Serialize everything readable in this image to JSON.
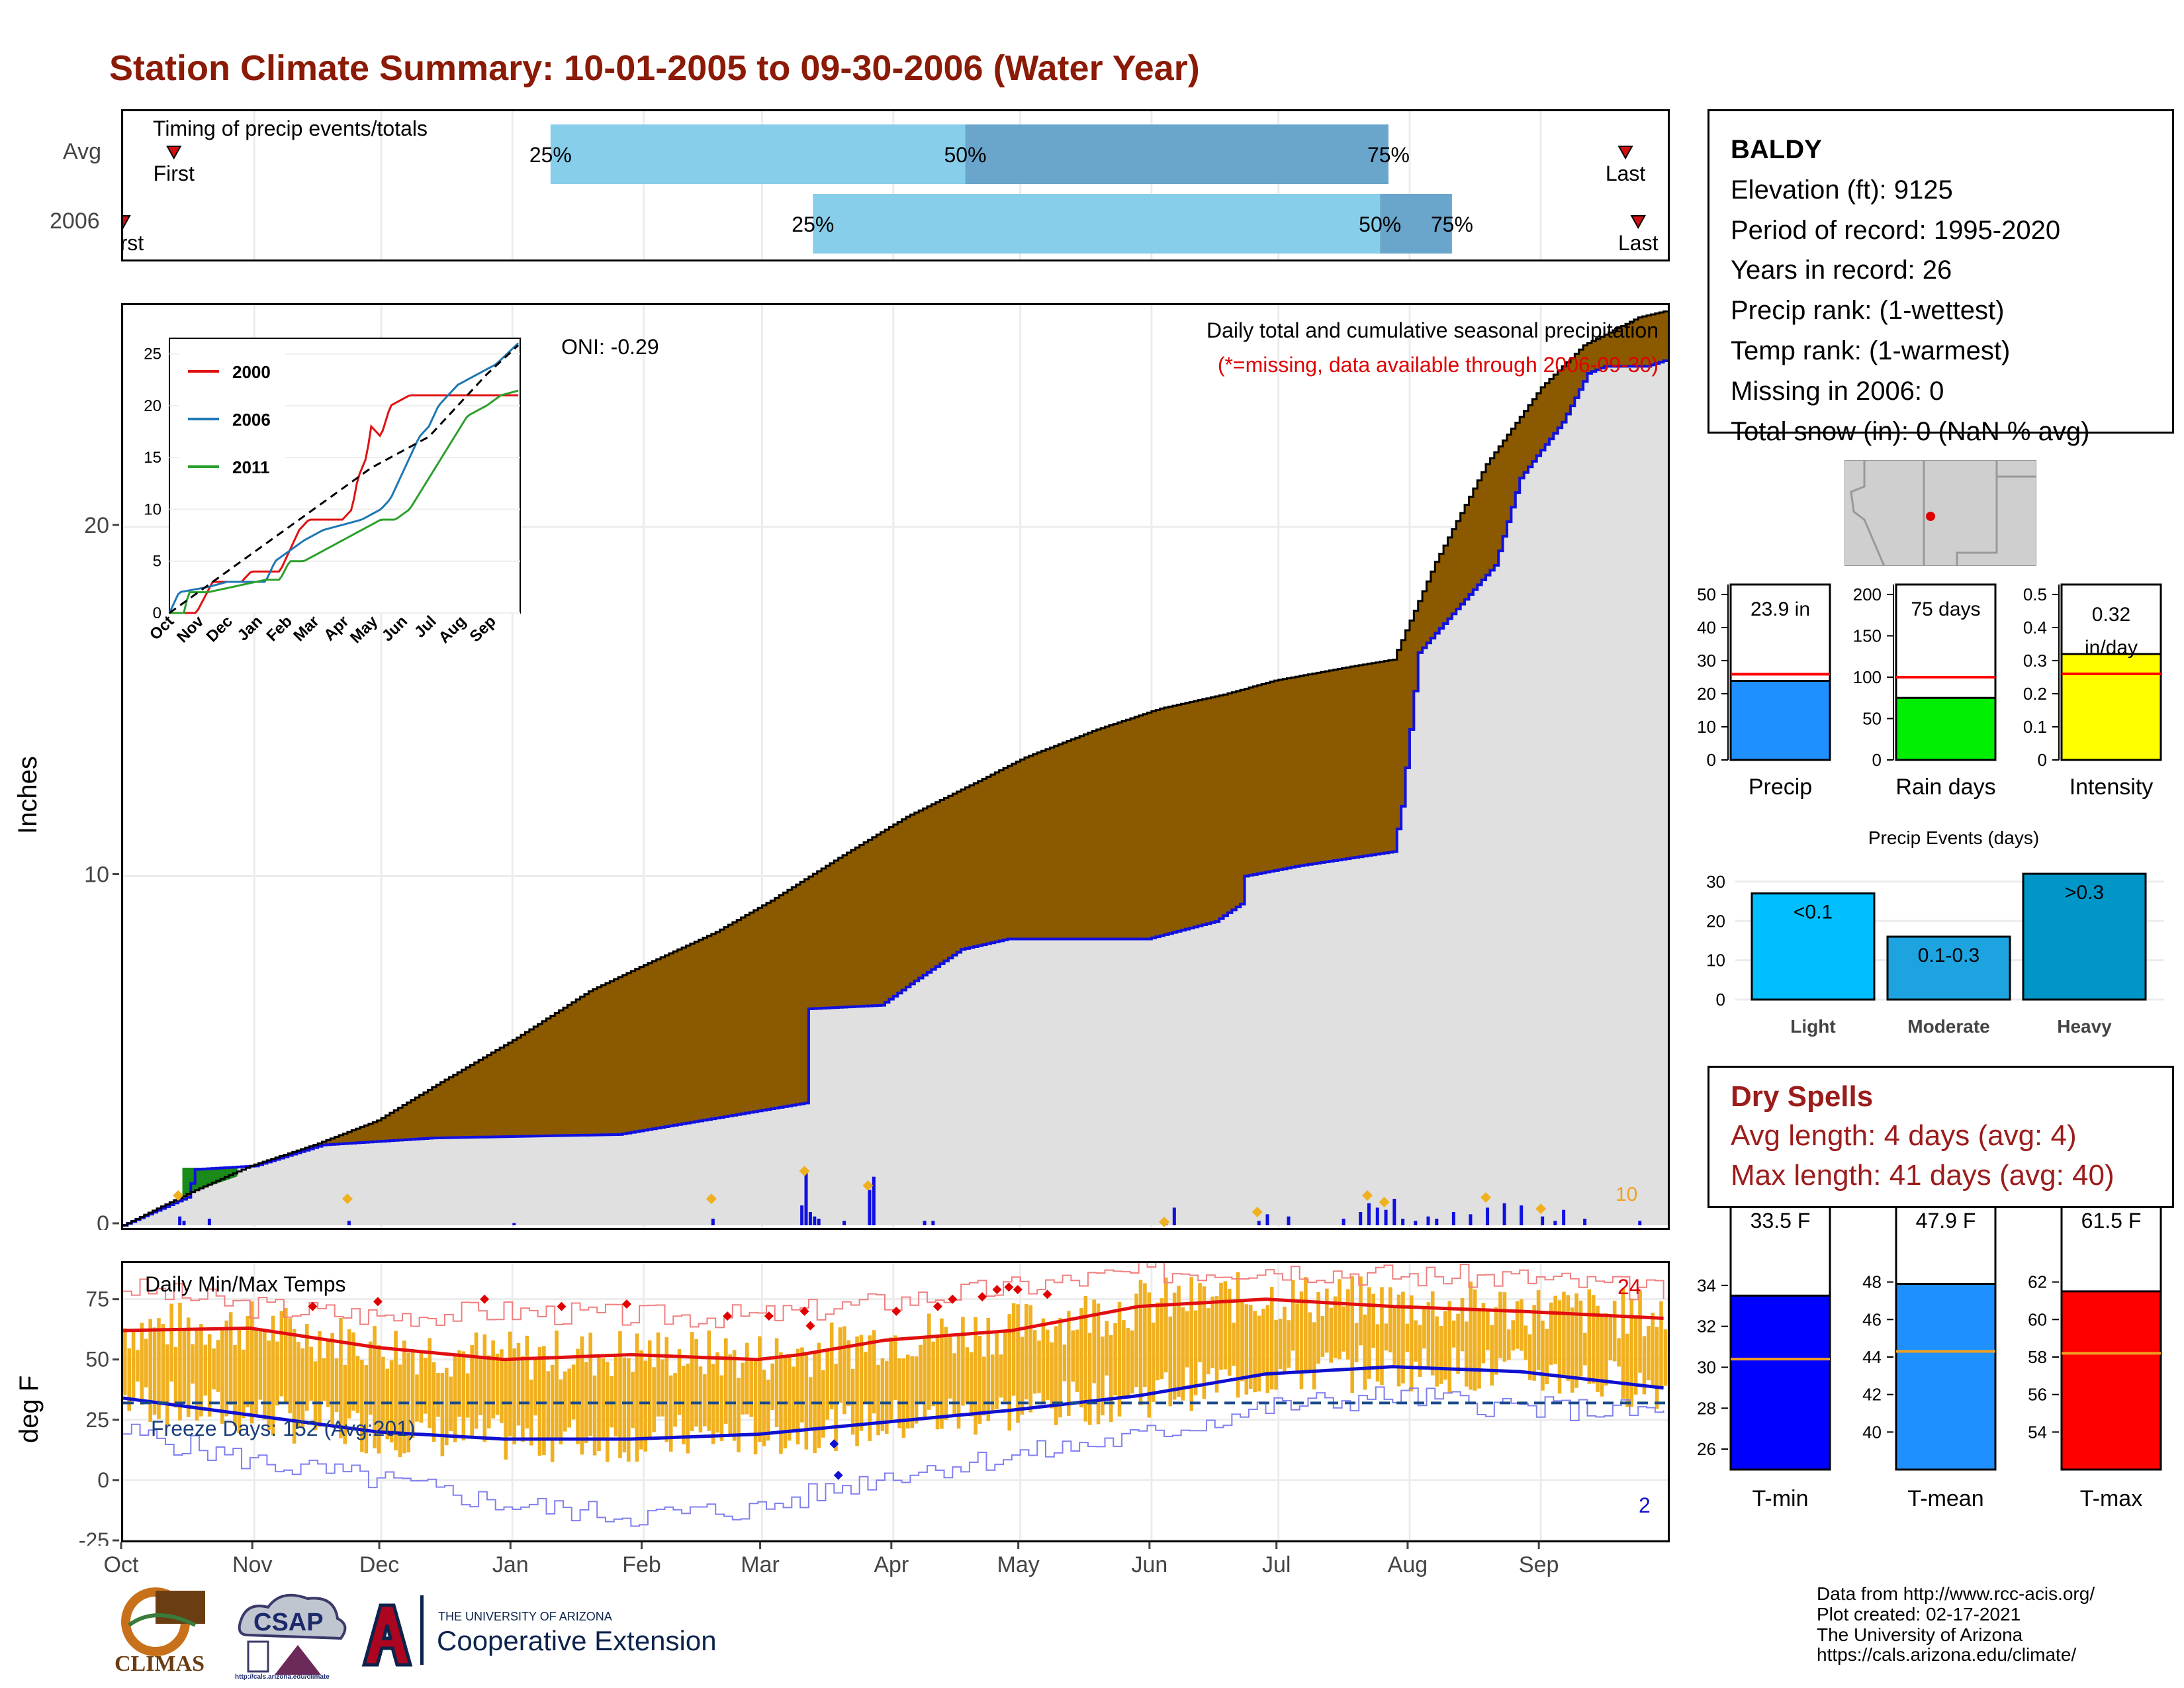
{
  "title": "Station Climate Summary: 10-01-2005 to 09-30-2006 (Water Year)",
  "colors": {
    "title": "#8b1a06",
    "cum_fill": "#8b5a00",
    "cum_under": "#e0e0e0",
    "blue": "#1010e0",
    "orange": "#f0b020",
    "light_bar": "#87ceeb",
    "dark_bar": "#6aa5cc",
    "dry_text": "#9c1c1c"
  },
  "timing": {
    "label": "Timing of precip events/totals",
    "rows": [
      {
        "name": "Avg",
        "first_label": "First",
        "last_label": "Last",
        "q25": "25%",
        "q50": "50%",
        "q75": "75%",
        "first_day": 12,
        "last_day": 355,
        "p25_day": 101,
        "p50_day": 199,
        "p75_day": 299
      },
      {
        "name": "2006",
        "first_label": "First",
        "last_label": "Last",
        "q25": "25%",
        "q50": "50%",
        "q75": "75%",
        "first_day": 0,
        "last_day": 358,
        "p25_day": 163,
        "p50_day": 297,
        "p75_day": 314
      }
    ]
  },
  "main_chart": {
    "ylabel": "Inches",
    "heading": "Daily total and cumulative seasonal precipitation",
    "missing_note": "(*=missing, data available through 2006-09-30)",
    "oni": "ONI: -0.29",
    "daily_max_label": "10"
  },
  "temp_chart": {
    "label": "Daily Min/Max Temps",
    "ylabel": "deg F",
    "freeze": "Freeze Days: 152 (Avg:201)",
    "count_high": "24",
    "count_low": "2"
  },
  "months": [
    "Oct",
    "Nov",
    "Dec",
    "Jan",
    "Feb",
    "Mar",
    "Apr",
    "May",
    "Jun",
    "Jul",
    "Aug",
    "Sep"
  ],
  "inset_months": [
    "Oct",
    "Nov",
    "Dec",
    "Jan",
    "Feb",
    "Mar",
    "Apr",
    "May",
    "Jun",
    "Jul",
    "Aug",
    "Sep"
  ],
  "station": {
    "name": "BALDY",
    "elevation": "Elevation (ft): 9125",
    "period": "Period of record: 1995-2020",
    "years": "Years in record: 26",
    "precip_rank": "Precip rank:  (1-wettest)",
    "temp_rank": "Temp rank:  (1-warmest)",
    "missing": "Missing in 2006: 0",
    "snow": "Total snow (in): 0 (NaN % avg)"
  },
  "precip_events_title": "Precip Events (days)",
  "dry_spells": {
    "heading": "Dry Spells",
    "avg": "Avg length: 4 days (avg: 4)",
    "max": "Max length: 41 days (avg: 40)"
  },
  "credits": [
    "Data from http://www.rcc-acis.org/",
    "Plot created: 02-17-2021",
    "The University of Arizona",
    "https://cals.arizona.edu/climate/"
  ],
  "logos": {
    "climas": "CLIMAS",
    "csap": "CSAP",
    "csap_url": "http://cals.arizona.edu/climate",
    "ua_small": "THE UNIVERSITY OF ARIZONA",
    "ua_big": "Cooperative Extension"
  },
  "chart_data": [
    {
      "type": "area",
      "title": "Daily total and cumulative seasonal precipitation",
      "ylabel": "Inches",
      "ylim": [
        0,
        26.2
      ],
      "x_unit": "day of water year (0 = Oct 1)",
      "cumulative_2006": {
        "x": [
          0,
          15,
          30,
          45,
          60,
          75,
          92,
          110,
          122,
          140,
          153,
          170,
          185,
          200,
          213,
          230,
          245,
          260,
          272,
          290,
          300,
          310,
          322,
          335,
          345,
          358,
          365
        ],
        "y": [
          0,
          0.9,
          1.7,
          2.3,
          3.0,
          4.1,
          5.3,
          6.7,
          7.4,
          8.4,
          9.3,
          10.6,
          11.7,
          12.6,
          13.4,
          14.2,
          14.8,
          15.2,
          15.6,
          16.0,
          16.2,
          19.0,
          21.8,
          24.0,
          25.2,
          26.0,
          26.2
        ]
      },
      "cumulative_avg": {
        "x": [
          0,
          15,
          17,
          31,
          47,
          73,
          117,
          161,
          162,
          179,
          187,
          198,
          209,
          242,
          258,
          264,
          265,
          278,
          300,
          302,
          306,
          324,
          330,
          340,
          346,
          350,
          360,
          365
        ],
        "y": [
          0,
          0.8,
          1.6,
          1.7,
          2.3,
          2.5,
          2.6,
          3.5,
          6.2,
          6.3,
          7.0,
          7.9,
          8.2,
          8.2,
          8.7,
          9.2,
          10.0,
          10.3,
          10.7,
          12.0,
          16.4,
          18.9,
          21.4,
          23.0,
          24.4,
          24.6,
          24.6,
          24.8
        ]
      },
      "daily_precip": {
        "x": [
          13,
          14,
          20,
          53,
          92,
          139,
          160,
          161,
          162,
          163,
          164,
          170,
          176,
          177,
          189,
          191,
          246,
          248,
          268,
          270,
          275,
          288,
          292,
          294,
          296,
          298,
          300,
          302,
          305,
          308,
          310,
          314,
          318,
          322,
          326,
          330,
          335,
          338,
          340,
          345,
          358
        ],
        "y": [
          0.2,
          0.1,
          0.15,
          0.1,
          0.05,
          0.15,
          0.45,
          1.2,
          0.3,
          0.2,
          0.15,
          0.1,
          0.8,
          1.1,
          0.1,
          0.1,
          0.05,
          0.4,
          0.1,
          0.25,
          0.2,
          0.15,
          0.3,
          0.5,
          0.4,
          0.35,
          0.6,
          0.15,
          0.1,
          0.2,
          0.15,
          0.3,
          0.25,
          0.4,
          0.5,
          0.45,
          0.2,
          0.1,
          0.35,
          0.15,
          0.1
        ]
      },
      "oni": -0.29
    },
    {
      "type": "line",
      "title": "",
      "series": [
        {
          "name": "2000",
          "x": [
            0,
            26,
            28,
            45,
            55,
            75,
            85,
            115,
            125,
            135,
            145,
            160,
            180,
            190,
            196,
            205,
            210,
            220,
            230,
            250,
            270,
            280,
            300,
            320,
            340,
            365
          ],
          "y": [
            0,
            0,
            0,
            3,
            3,
            3,
            4,
            4,
            6,
            8,
            9,
            9,
            9,
            10,
            13,
            15,
            18,
            17,
            20,
            21,
            21,
            21,
            21,
            21,
            21,
            21
          ]
        },
        {
          "name": "2006",
          "x": [
            0,
            10,
            40,
            60,
            80,
            100,
            110,
            125,
            140,
            160,
            180,
            200,
            210,
            220,
            230,
            240,
            250,
            260,
            270,
            280,
            300,
            320,
            340,
            365
          ],
          "y": [
            0,
            2,
            2.5,
            3,
            3,
            3,
            5,
            6,
            7,
            8,
            8.5,
            9,
            9.5,
            10,
            11,
            13,
            15,
            17,
            18,
            20,
            22,
            23,
            24,
            26.2
          ]
        },
        {
          "name": "2011",
          "x": [
            0,
            15,
            20,
            40,
            60,
            80,
            100,
            115,
            125,
            140,
            160,
            180,
            200,
            210,
            220,
            235,
            250,
            270,
            290,
            310,
            330,
            345,
            365
          ],
          "y": [
            0,
            0,
            2,
            2,
            2.4,
            2.8,
            3.2,
            3.2,
            5,
            5,
            6,
            7,
            8,
            8.5,
            9,
            9,
            10,
            13,
            16,
            19,
            20,
            21,
            21.5
          ]
        },
        {
          "name": "Avg",
          "x": [
            0,
            30,
            60,
            90,
            120,
            150,
            180,
            210,
            240,
            270,
            300,
            330,
            365
          ],
          "y": [
            0,
            2,
            4,
            6,
            8,
            10,
            12,
            14,
            15.5,
            17,
            20,
            23,
            26
          ]
        }
      ],
      "ylim": [
        0,
        26
      ],
      "xticklabels": [
        "Oct",
        "Nov",
        "Dec",
        "Jan",
        "Feb",
        "Mar",
        "Apr",
        "May",
        "Jun",
        "Jul",
        "Aug",
        "Sep"
      ]
    },
    {
      "type": "line",
      "title": "Daily Min/Max Temps",
      "ylabel": "deg F",
      "ylim": [
        -25,
        90
      ],
      "avg_max": {
        "x": [
          0,
          30,
          60,
          90,
          120,
          150,
          160,
          180,
          210,
          240,
          270,
          300,
          330,
          365
        ],
        "y": [
          62,
          63,
          55,
          50,
          52,
          50,
          52,
          58,
          62,
          72,
          75,
          72,
          70,
          67
        ]
      },
      "avg_min": {
        "x": [
          0,
          30,
          60,
          90,
          120,
          150,
          180,
          210,
          240,
          270,
          300,
          330,
          365
        ],
        "y": [
          34,
          27,
          20,
          17,
          17,
          19,
          24,
          29,
          35,
          44,
          47,
          45,
          38
        ]
      },
      "record_max": {
        "x": [
          0,
          30,
          60,
          90,
          120,
          150,
          180,
          210,
          240,
          270,
          300,
          330,
          365
        ],
        "y": [
          80,
          72,
          68,
          70,
          68,
          68,
          74,
          80,
          86,
          88,
          85,
          84,
          78
        ]
      },
      "record_min": {
        "x": [
          0,
          30,
          60,
          90,
          120,
          150,
          180,
          210,
          240,
          270,
          300,
          330,
          365
        ],
        "y": [
          20,
          8,
          0,
          -10,
          -15,
          -12,
          2,
          10,
          18,
          30,
          35,
          30,
          28
        ]
      },
      "freeze_line": 32,
      "freeze_days": 152,
      "freeze_days_avg": 201,
      "record_high_count": 24,
      "record_low_count": 2
    },
    {
      "type": "bar",
      "title": "",
      "categories": [
        "Precip"
      ],
      "values": [
        23.9
      ],
      "avg": 25.9,
      "ylim": [
        0,
        50
      ],
      "label": "23.9 in"
    },
    {
      "type": "bar",
      "title": "",
      "categories": [
        "Rain days"
      ],
      "values": [
        75
      ],
      "avg": 100,
      "ylim": [
        0,
        200
      ],
      "label": "75 days"
    },
    {
      "type": "bar",
      "title": "",
      "categories": [
        "Intensity"
      ],
      "values": [
        0.32
      ],
      "avg": 0.26,
      "ylim": [
        0,
        0.5
      ],
      "label": "0.32 in/day"
    },
    {
      "type": "bar",
      "title": "Precip Events (days)",
      "categories": [
        "Light",
        "Moderate",
        "Heavy"
      ],
      "values": [
        27,
        16,
        32
      ],
      "bar_labels": [
        "<0.1",
        "0.1-0.3",
        ">0.3"
      ],
      "ylim": [
        0,
        32
      ]
    },
    {
      "type": "bar",
      "title": "",
      "categories": [
        "T-min"
      ],
      "values": [
        33.5
      ],
      "avg": 30.4,
      "ylim": [
        25,
        36
      ],
      "label": "33.5 F"
    },
    {
      "type": "bar",
      "title": "",
      "categories": [
        "T-mean"
      ],
      "values": [
        47.9
      ],
      "avg": 44.3,
      "ylim": [
        38,
        50
      ],
      "label": "47.9 F"
    },
    {
      "type": "bar",
      "title": "",
      "categories": [
        "T-max"
      ],
      "values": [
        61.5
      ],
      "avg": 58.2,
      "ylim": [
        52,
        64
      ],
      "label": "61.5 F"
    }
  ]
}
